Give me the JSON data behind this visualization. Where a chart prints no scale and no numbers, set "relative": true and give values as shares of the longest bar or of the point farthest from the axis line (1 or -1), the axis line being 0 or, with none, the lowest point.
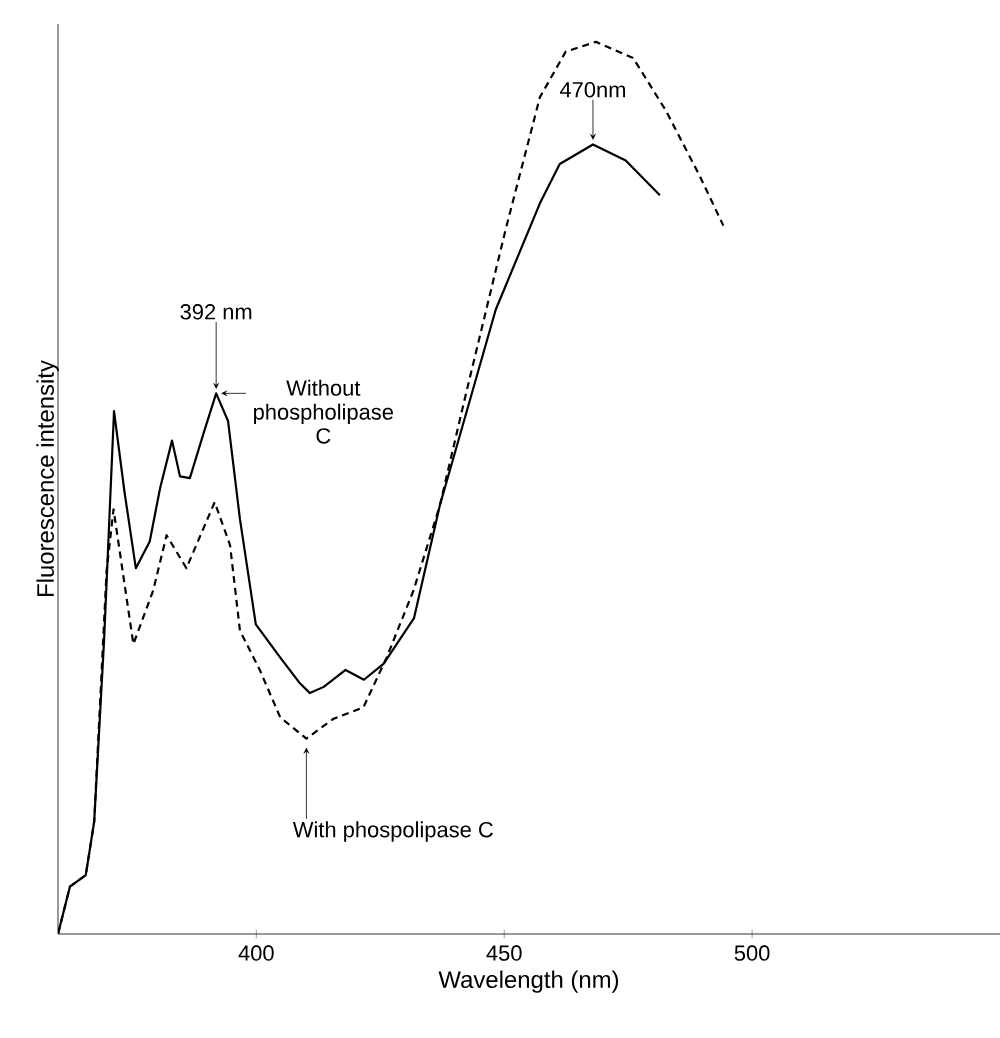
{
  "chart_data": {
    "type": "line",
    "relative": true,
    "xlabel": "Wavelength (nm)",
    "ylabel": "Fluorescence intensity",
    "xlim": [
      360,
      550
    ],
    "xticks": [
      400,
      450,
      500
    ],
    "marker": "none",
    "series": [
      {
        "color": "#000000",
        "line_style": "solid",
        "x": [
          360,
          362.4,
          365.6,
          367.3,
          369.3,
          371.3,
          373.4,
          375.7,
          378.5,
          380.6,
          383,
          384.6,
          386.6,
          389.4,
          391.9,
          394.3,
          396.7,
          399.9,
          404.8,
          408.8,
          410.8,
          413.6,
          418,
          421.7,
          425.7,
          431.8,
          437,
          448.3,
          457.2,
          461.2,
          467.9,
          474.5,
          481.4
        ],
        "values": [
          0,
          0.053,
          0.066,
          0.126,
          0.33,
          0.586,
          0.496,
          0.41,
          0.44,
          0.5,
          0.553,
          0.513,
          0.511,
          0.562,
          0.606,
          0.575,
          0.465,
          0.347,
          0.31,
          0.281,
          0.27,
          0.277,
          0.296,
          0.285,
          0.303,
          0.354,
          0.48,
          0.7,
          0.819,
          0.863,
          0.885,
          0.867,
          0.828
        ]
      },
      {
        "color": "#000000",
        "line_style": "dashed",
        "x": [
          360,
          362.4,
          365.6,
          367.3,
          369.8,
          371.2,
          375.2,
          379.2,
          381.9,
          385.9,
          391.6,
          394.7,
          396.7,
          400.7,
          404.8,
          410.1,
          415.5,
          421.6,
          426.3,
          431.7,
          437,
          442.3,
          450.3,
          457.2,
          462.4,
          468.5,
          476,
          482.6,
          489.4,
          494.2
        ],
        "values": [
          0,
          0.053,
          0.066,
          0.126,
          0.407,
          0.476,
          0.325,
          0.385,
          0.447,
          0.41,
          0.484,
          0.436,
          0.34,
          0.296,
          0.243,
          0.219,
          0.241,
          0.254,
          0.31,
          0.385,
          0.48,
          0.606,
          0.79,
          0.938,
          0.989,
          1.0,
          0.982,
          0.923,
          0.85,
          0.794
        ]
      }
    ],
    "annotations": [
      {
        "text": "392 nm",
        "x": 391.9,
        "y": 0.606
      },
      {
        "text": "Without phospholipase C",
        "x": 391.9,
        "y": 0.606
      },
      {
        "text": "470nm",
        "x": 467.9,
        "y": 0.885
      },
      {
        "text": "With phospolipase C",
        "x": 410.1,
        "y": 0.219
      }
    ]
  }
}
